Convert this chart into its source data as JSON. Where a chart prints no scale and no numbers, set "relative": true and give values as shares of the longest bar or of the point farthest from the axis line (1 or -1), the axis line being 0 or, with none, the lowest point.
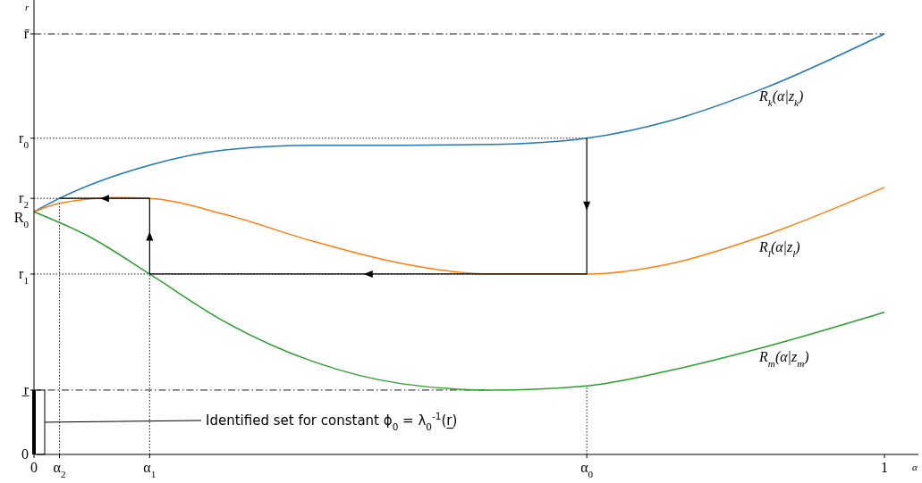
{
  "chart_data": {
    "type": "line",
    "relative": true,
    "xlabel": "α",
    "ylabel": "r",
    "xlim": [
      0,
      1.04
    ],
    "xticks": [
      0,
      1
    ],
    "series": [
      {
        "name": "R$_{k}$(α|z$_{k}$)",
        "color": "#1f77b4",
        "x": [
          0,
          0.03,
          0.136,
          0.224,
          0.328,
          0.433,
          0.538,
          0.65,
          0.749,
          0.855,
          1
        ],
        "values": [
          0.577,
          0.609,
          0.688,
          0.724,
          0.735,
          0.735,
          0.737,
          0.752,
          0.794,
          0.868,
          1
        ]
      },
      {
        "name": "R$_{l}$(α|z$_{l}$)",
        "color": "#ff7f0e",
        "x": [
          0,
          0.03,
          0.097,
          0.136,
          0.224,
          0.328,
          0.433,
          0.538,
          0.65,
          0.749,
          0.855,
          1
        ],
        "values": [
          0.577,
          0.597,
          0.611,
          0.609,
          0.571,
          0.507,
          0.454,
          0.429,
          0.429,
          0.454,
          0.518,
          0.635
        ]
      },
      {
        "name": "R$_{m}$(α|z$_{m}$)",
        "color": "#2ca02c",
        "x": [
          0,
          0.065,
          0.136,
          0.224,
          0.328,
          0.433,
          0.538,
          0.65,
          0.749,
          0.855,
          1
        ],
        "values": [
          0.577,
          0.518,
          0.429,
          0.316,
          0.221,
          0.168,
          0.153,
          0.163,
          0.2,
          0.253,
          0.338
        ]
      },
      {
        "color": "#000000",
        "x": [
          0.65,
          0.65,
          0.136,
          0.136,
          0.03
        ],
        "values": [
          0.752,
          0.429,
          0.429,
          0.609,
          0.609
        ]
      }
    ],
    "ref_lines": [
      {
        "axis": "y",
        "value": 1,
        "label": "r̄",
        "line_style": "dashdot"
      },
      {
        "axis": "y",
        "value": 0.752,
        "label": "r$_{0}$",
        "line_style": "dotted"
      },
      {
        "axis": "y",
        "value": 0.609,
        "label": "r$_{2}$",
        "line_style": "dotted"
      },
      {
        "axis": "y",
        "value": 0.429,
        "label": "r$_{1}$",
        "line_style": "dotted"
      },
      {
        "axis": "y",
        "value": 0.153,
        "label": "r̲",
        "line_style": "dashdot"
      },
      {
        "axis": "x",
        "value": 0.03,
        "label": "α$_{2}$",
        "line_style": "dotted"
      },
      {
        "axis": "x",
        "value": 0.136,
        "label": "α$_{1}$",
        "line_style": "dotted"
      },
      {
        "axis": "x",
        "value": 0.65,
        "label": "α$_{0}$",
        "line_style": "dotted"
      }
    ],
    "annotations": [
      {
        "text": "R$_{0}$",
        "x": 0,
        "y": 0.577
      },
      "0",
      "Identified set for constant ϕ$_{0}$ = λ$_{0}$$^{-1}$(r̲)"
    ],
    "legend": false
  }
}
